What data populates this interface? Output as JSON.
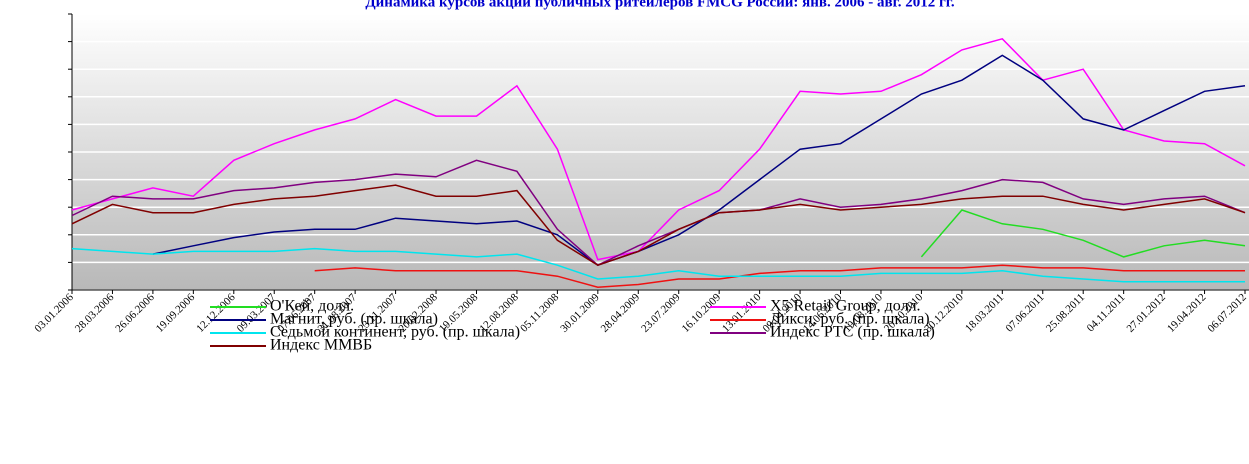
{
  "chart_data": {
    "type": "line",
    "title": "Динамика курсов акций публичных ритейлеров FMCG России: янв. 2006 - авг. 2012 гг.",
    "categories": [
      "03.01.2006",
      "28.03.2006",
      "26.06.2006",
      "19.09.2006",
      "12.12.2006",
      "09.03.2007",
      "07.06.2007",
      "31.08.2007",
      "23.11.2007",
      "20.02.2008",
      "19.05.2008",
      "12.08.2008",
      "05.11.2008",
      "30.01.2009",
      "28.04.2009",
      "23.07.2009",
      "16.10.2009",
      "13.01.2010",
      "09.04.2010",
      "14.06.2010",
      "19.08.2010",
      "20.10.2010",
      "30.12.2010",
      "18.03.2011",
      "07.06.2011",
      "25.08.2011",
      "04.11.2011",
      "27.01.2012",
      "19.04.2012",
      "06.07.2012"
    ],
    "ylim": [
      0,
      10
    ],
    "yticks": [
      0,
      1,
      2,
      3,
      4,
      5,
      6,
      7,
      8,
      9,
      10
    ],
    "grid": true,
    "series": [
      {
        "name": "О'Кей, долл.",
        "color": "#22dd22",
        "values": [
          null,
          null,
          null,
          null,
          null,
          null,
          null,
          null,
          null,
          null,
          null,
          null,
          null,
          null,
          null,
          null,
          null,
          null,
          null,
          null,
          null,
          1.2,
          2.9,
          2.4,
          2.2,
          1.8,
          1.2,
          1.6,
          1.8,
          1.6
        ]
      },
      {
        "name": "X5 Retail Group, долл.",
        "color": "#ff00ff",
        "values": [
          2.9,
          3.3,
          3.7,
          3.4,
          4.7,
          5.3,
          5.8,
          6.2,
          6.9,
          6.3,
          6.3,
          7.4,
          5.1,
          1.1,
          1.4,
          2.9,
          3.6,
          5.1,
          7.2,
          7.1,
          7.2,
          7.8,
          8.7,
          9.1,
          7.6,
          8.0,
          5.8,
          5.4,
          5.3,
          4.5
        ]
      },
      {
        "name": "Магнит, руб. (пр. шкала)",
        "color": "#000080",
        "values": [
          null,
          null,
          1.3,
          1.6,
          1.9,
          2.1,
          2.2,
          2.2,
          2.6,
          2.5,
          2.4,
          2.5,
          2.0,
          0.9,
          1.4,
          2.0,
          2.9,
          4.0,
          5.1,
          5.3,
          6.2,
          7.1,
          7.6,
          8.5,
          7.6,
          6.2,
          5.8,
          6.5,
          7.2,
          7.4
        ]
      },
      {
        "name": "Дикси, руб. (пр. шкала)",
        "color": "#ee1111",
        "values": [
          null,
          null,
          null,
          null,
          null,
          null,
          0.7,
          0.8,
          0.7,
          0.7,
          0.7,
          0.7,
          0.5,
          0.1,
          0.2,
          0.4,
          0.4,
          0.6,
          0.7,
          0.7,
          0.8,
          0.8,
          0.8,
          0.9,
          0.8,
          0.8,
          0.7,
          0.7,
          0.7,
          0.7
        ]
      },
      {
        "name": "Седьмой континент, руб. (пр. шкала)",
        "color": "#00e5ee",
        "values": [
          1.5,
          1.4,
          1.3,
          1.4,
          1.4,
          1.4,
          1.5,
          1.4,
          1.4,
          1.3,
          1.2,
          1.3,
          0.9,
          0.4,
          0.5,
          0.7,
          0.5,
          0.5,
          0.5,
          0.5,
          0.6,
          0.6,
          0.6,
          0.7,
          0.5,
          0.4,
          0.3,
          0.3,
          0.3,
          0.3
        ]
      },
      {
        "name": "Индекс РТС (пр. шкала)",
        "color": "#800080",
        "values": [
          2.7,
          3.4,
          3.3,
          3.3,
          3.6,
          3.7,
          3.9,
          4.0,
          4.2,
          4.1,
          4.7,
          4.3,
          2.2,
          0.9,
          1.6,
          2.2,
          2.8,
          2.9,
          3.3,
          3.0,
          3.1,
          3.3,
          3.6,
          4.0,
          3.9,
          3.3,
          3.1,
          3.3,
          3.4,
          2.8
        ]
      },
      {
        "name": "Индекс ММВБ",
        "color": "#800000",
        "values": [
          2.4,
          3.1,
          2.8,
          2.8,
          3.1,
          3.3,
          3.4,
          3.6,
          3.8,
          3.4,
          3.4,
          3.6,
          1.8,
          0.9,
          1.4,
          2.2,
          2.8,
          2.9,
          3.1,
          2.9,
          3.0,
          3.1,
          3.3,
          3.4,
          3.4,
          3.1,
          2.9,
          3.1,
          3.3,
          2.8
        ]
      }
    ]
  }
}
